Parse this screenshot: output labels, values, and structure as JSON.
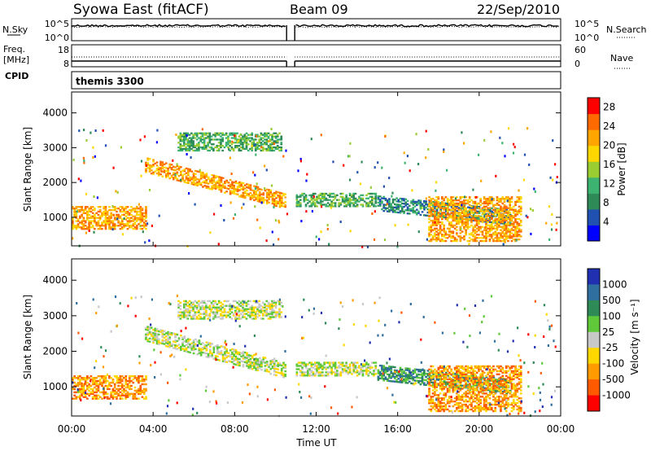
{
  "header": {
    "station": "Syowa East (fitACF)",
    "beam": "Beam 09",
    "date": "22/Sep/2010"
  },
  "panel_nsky": {
    "left_label": "N.Sky",
    "left_ticks": [
      "10^5",
      "10^0"
    ],
    "right_ticks": [
      "10^5",
      "10^0"
    ],
    "right_label": "N.Search"
  },
  "panel_freq": {
    "left_label_1": "Freq.",
    "left_label_2": "[MHz]",
    "left_ticks": [
      "18",
      "8"
    ],
    "right_ticks": [
      "60",
      "0"
    ],
    "right_label": "Nave"
  },
  "cpid": {
    "label": "CPID",
    "value": "themis 3300"
  },
  "x_axis": {
    "label": "Time UT",
    "ticks": [
      "00:00",
      "04:00",
      "08:00",
      "12:00",
      "16:00",
      "20:00",
      "00:00"
    ]
  },
  "chart_data": [
    {
      "type": "heatmap",
      "title": "",
      "xlabel": "Time UT",
      "ylabel": "Slant Range [km]",
      "x_range_hours": [
        0,
        24
      ],
      "ylim": [
        180,
        4600
      ],
      "y_ticks": [
        1000,
        2000,
        3000,
        4000
      ],
      "x_ticks": [
        "00:00",
        "04:00",
        "08:00",
        "12:00",
        "16:00",
        "20:00",
        "00:00"
      ],
      "colorbar": {
        "label": "Power [dB]",
        "range": [
          0,
          30
        ],
        "ticks": [
          4,
          8,
          12,
          16,
          20,
          24,
          28
        ],
        "colors": [
          "#0000ff",
          "#2050b0",
          "#2e8b57",
          "#3cb371",
          "#9acd32",
          "#ffd700",
          "#ffa500",
          "#ff6a00",
          "#ff0000"
        ]
      },
      "data_gap_hours": [
        10.55,
        10.95
      ],
      "features": [
        {
          "name": "early near-range echo",
          "t": [
            0,
            3.6
          ],
          "range": [
            650,
            1300
          ],
          "power_dB": 24
        },
        {
          "name": "descending band",
          "t": [
            3.6,
            10.5
          ],
          "range_start": 2500,
          "range_end": 1450,
          "power_dB": 24
        },
        {
          "name": "far-range patch",
          "t": [
            5.2,
            10.3
          ],
          "range": [
            2900,
            3400
          ],
          "power_dB": 12
        },
        {
          "name": "post-gap band",
          "t": [
            11.0,
            14.9
          ],
          "range": [
            1300,
            1700
          ],
          "power_dB": 12
        },
        {
          "name": "evening band",
          "t": [
            15.0,
            21.5
          ],
          "range_start": 1400,
          "range_end": 1000,
          "power_dB": 8
        },
        {
          "name": "late low-range echo",
          "t": [
            17.5,
            22.0
          ],
          "range": [
            300,
            1600
          ],
          "power_dB": 22
        }
      ]
    },
    {
      "type": "heatmap",
      "title": "",
      "xlabel": "Time UT",
      "ylabel": "Slant Range [km]",
      "x_range_hours": [
        0,
        24
      ],
      "ylim": [
        180,
        4600
      ],
      "y_ticks": [
        1000,
        2000,
        3000,
        4000
      ],
      "x_ticks": [
        "00:00",
        "04:00",
        "08:00",
        "12:00",
        "16:00",
        "20:00",
        "00:00"
      ],
      "colorbar": {
        "label": "Velocity [m s⁻¹]",
        "ticks": [
          "1000",
          "500",
          "100",
          "25",
          "-25",
          "-100",
          "-500",
          "-1000"
        ],
        "colors": [
          "#2030b0",
          "#2e6fa0",
          "#2e8b57",
          "#5fc93a",
          "#c8c8c8",
          "#ffd700",
          "#ff9b00",
          "#ff5a00",
          "#ff0000"
        ]
      },
      "data_gap_hours": [
        10.55,
        10.95
      ],
      "features": [
        {
          "name": "early near-range echo",
          "t": [
            0,
            3.6
          ],
          "range": [
            650,
            1300
          ],
          "velocity_m_s": -300
        },
        {
          "name": "descending ground-scatter band",
          "t": [
            3.6,
            10.5
          ],
          "range_start": 2500,
          "range_end": 1450,
          "velocity_m_s": 0
        },
        {
          "name": "far-range patch",
          "t": [
            5.2,
            10.3
          ],
          "range": [
            2900,
            3400
          ],
          "velocity_m_s": 0
        },
        {
          "name": "post-gap band",
          "t": [
            11.0,
            14.9
          ],
          "range": [
            1300,
            1700
          ],
          "velocity_m_s": 0
        },
        {
          "name": "evening band",
          "t": [
            15.0,
            21.5
          ],
          "range_start": 1400,
          "range_end": 1000,
          "velocity_m_s": 150
        },
        {
          "name": "late low-range echo",
          "t": [
            17.5,
            22.0
          ],
          "range": [
            300,
            1600
          ],
          "velocity_m_s": -200
        }
      ]
    }
  ]
}
